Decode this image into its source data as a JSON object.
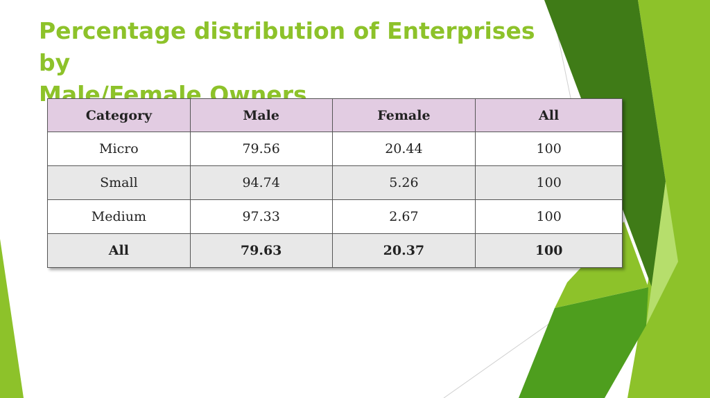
{
  "title_lines": [
    "Percentage distribution of Enterprises",
    "by",
    "Male/Female Owners"
  ],
  "table": {
    "headers": [
      "Category",
      "Male",
      "Female",
      "All"
    ],
    "rows": [
      [
        "Micro",
        "79.56",
        "20.44",
        "100"
      ],
      [
        "Small",
        "94.74",
        "5.26",
        "100"
      ],
      [
        "Medium",
        "97.33",
        "2.67",
        "100"
      ],
      [
        "All",
        "79.63",
        "20.37",
        "100"
      ]
    ]
  },
  "colors": {
    "accent_green": "#8dc22a",
    "dark_green": "#3f7b17",
    "mid_green": "#4e9e1e",
    "light_green": "#b6de6c",
    "header_fill": "#e2cce2"
  }
}
